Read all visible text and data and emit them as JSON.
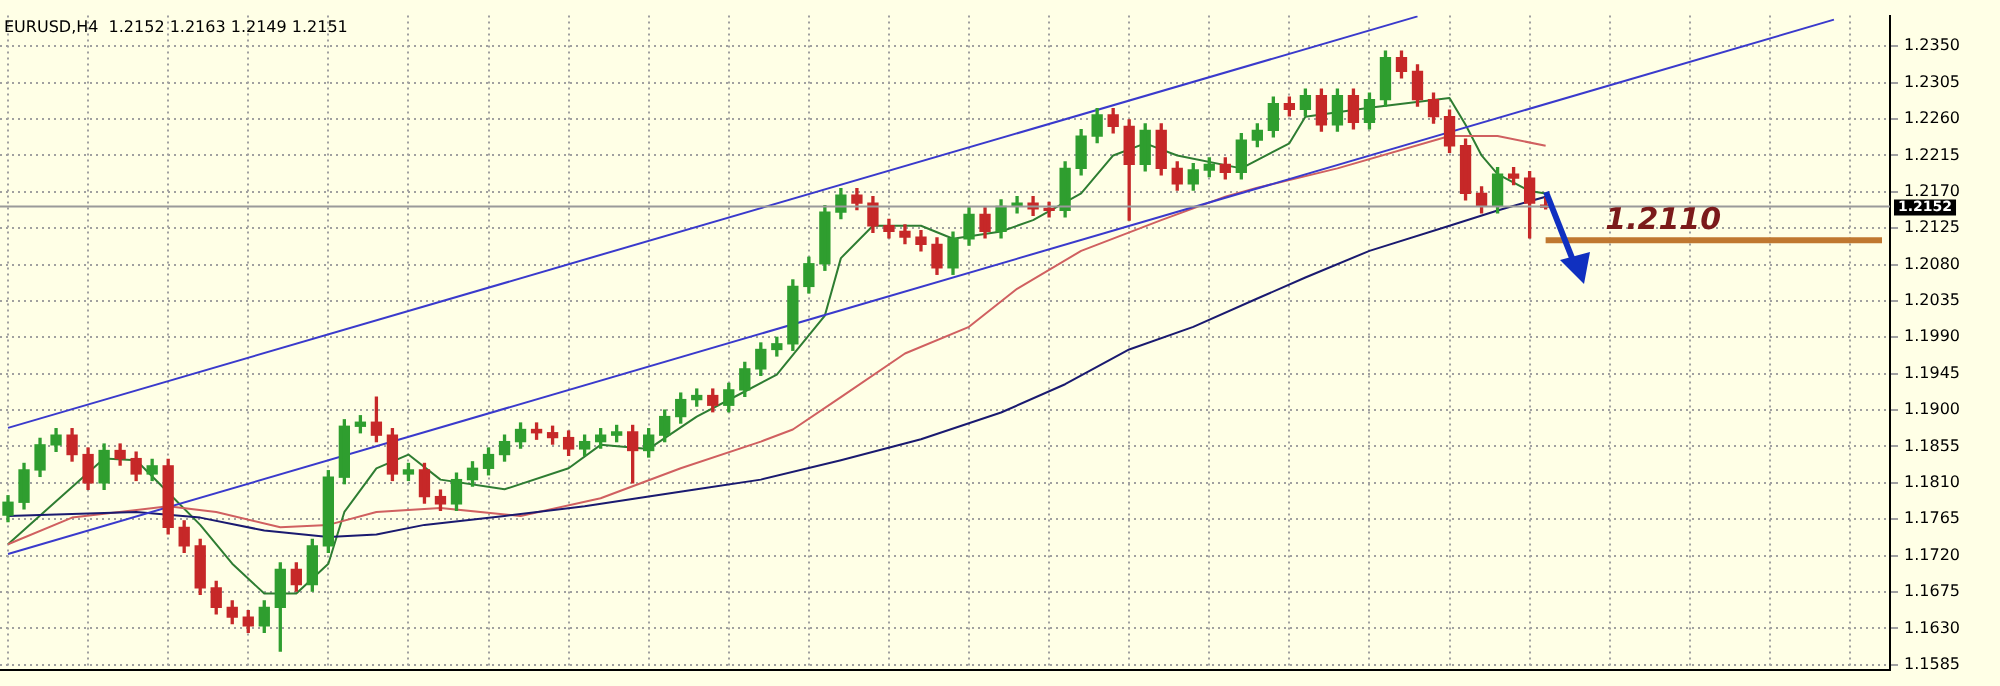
{
  "chart_data": {
    "type": "candlestick",
    "title": "EURUSD,H4  1.2152 1.2163 1.2149 1.2151",
    "categories": [
      null,
      null,
      null,
      null,
      null,
      null,
      null,
      null,
      null,
      null,
      null,
      null,
      null,
      null,
      null,
      null,
      null,
      null,
      null,
      null,
      null,
      null,
      null,
      null,
      null,
      null,
      null,
      null,
      null,
      null,
      null,
      null,
      null,
      null,
      null,
      null,
      null,
      null,
      null,
      null,
      null,
      null,
      null,
      null,
      null,
      null,
      null,
      null,
      null,
      null,
      null,
      null,
      null,
      null,
      null,
      null,
      null,
      null,
      null,
      null,
      null,
      null,
      null,
      null,
      null,
      null,
      null,
      null,
      null,
      null,
      null,
      null,
      null,
      null,
      null,
      null,
      null,
      null,
      null,
      null,
      null,
      null,
      null,
      null,
      null,
      null,
      null,
      null,
      null,
      null,
      null,
      null,
      null,
      null,
      null,
      null,
      null,
      null,
      null,
      null,
      null,
      null,
      null,
      null,
      null,
      null,
      null,
      null,
      null,
      null,
      null,
      null,
      null,
      null,
      null,
      null,
      null,
      null
    ],
    "ohlc": [
      [
        1.177,
        1.1794,
        1.1762,
        1.1786
      ],
      [
        1.1786,
        1.1834,
        1.1778,
        1.1826
      ],
      [
        1.1826,
        1.1865,
        1.1818,
        1.1857
      ],
      [
        1.1857,
        1.1877,
        1.1849,
        1.1869
      ],
      [
        1.1869,
        1.1877,
        1.1837,
        1.1845
      ],
      [
        1.1845,
        1.1853,
        1.1802,
        1.181
      ],
      [
        1.181,
        1.1858,
        1.1802,
        1.185
      ],
      [
        1.185,
        1.1858,
        1.1832,
        1.184
      ],
      [
        1.184,
        1.1848,
        1.1813,
        1.1821
      ],
      [
        1.1821,
        1.1839,
        1.1813,
        1.1831
      ],
      [
        1.1831,
        1.1839,
        1.1747,
        1.1755
      ],
      [
        1.1755,
        1.1763,
        1.1724,
        1.1732
      ],
      [
        1.1732,
        1.174,
        1.1672,
        1.168
      ],
      [
        1.168,
        1.1688,
        1.1648,
        1.1656
      ],
      [
        1.1656,
        1.1664,
        1.1636,
        1.1644
      ],
      [
        1.1644,
        1.1652,
        1.1625,
        1.1633
      ],
      [
        1.1633,
        1.1664,
        1.1625,
        1.1656
      ],
      [
        1.1656,
        1.1711,
        1.1602,
        1.1703
      ],
      [
        1.1703,
        1.1711,
        1.1676,
        1.1684
      ],
      [
        1.1684,
        1.174,
        1.1676,
        1.1732
      ],
      [
        1.1732,
        1.1825,
        1.1724,
        1.1817
      ],
      [
        1.1817,
        1.1888,
        1.1809,
        1.188
      ],
      [
        1.188,
        1.1893,
        1.1872,
        1.1885
      ],
      [
        1.1885,
        1.1916,
        1.1861,
        1.1869
      ],
      [
        1.1869,
        1.1877,
        1.1813,
        1.1821
      ],
      [
        1.1821,
        1.1834,
        1.1813,
        1.1826
      ],
      [
        1.1826,
        1.1834,
        1.1785,
        1.1793
      ],
      [
        1.1793,
        1.1801,
        1.1776,
        1.1784
      ],
      [
        1.1784,
        1.1822,
        1.1776,
        1.1814
      ],
      [
        1.1814,
        1.1836,
        1.1806,
        1.1828
      ],
      [
        1.1828,
        1.1853,
        1.182,
        1.1845
      ],
      [
        1.1845,
        1.1869,
        1.1837,
        1.1861
      ],
      [
        1.1861,
        1.1884,
        1.1853,
        1.1876
      ],
      [
        1.1876,
        1.1884,
        1.1864,
        1.1872
      ],
      [
        1.1872,
        1.188,
        1.1858,
        1.1866
      ],
      [
        1.1866,
        1.1874,
        1.1844,
        1.1852
      ],
      [
        1.1852,
        1.1869,
        1.1844,
        1.1861
      ],
      [
        1.1861,
        1.1877,
        1.1853,
        1.1869
      ],
      [
        1.1869,
        1.1881,
        1.1861,
        1.1873
      ],
      [
        1.1873,
        1.1881,
        1.181,
        1.185
      ],
      [
        1.185,
        1.1877,
        1.1842,
        1.1869
      ],
      [
        1.1869,
        1.19,
        1.1861,
        1.1892
      ],
      [
        1.1892,
        1.1921,
        1.1884,
        1.1913
      ],
      [
        1.1913,
        1.1926,
        1.1905,
        1.1918
      ],
      [
        1.1918,
        1.1926,
        1.1898,
        1.1906
      ],
      [
        1.1906,
        1.1933,
        1.1898,
        1.1925
      ],
      [
        1.1925,
        1.1959,
        1.1917,
        1.1951
      ],
      [
        1.1951,
        1.1983,
        1.1943,
        1.1975
      ],
      [
        1.1975,
        1.199,
        1.1967,
        1.1982
      ],
      [
        1.1982,
        1.2061,
        1.1974,
        1.2053
      ],
      [
        1.2053,
        1.2089,
        1.2045,
        1.2081
      ],
      [
        1.2081,
        1.2153,
        1.2073,
        1.2145
      ],
      [
        1.2145,
        1.2174,
        1.2137,
        1.2166
      ],
      [
        1.2166,
        1.2174,
        1.2148,
        1.2156
      ],
      [
        1.2156,
        1.2164,
        1.212,
        1.2128
      ],
      [
        1.2128,
        1.2136,
        1.2113,
        1.2121
      ],
      [
        1.2121,
        1.2129,
        1.2106,
        1.2114
      ],
      [
        1.2114,
        1.2122,
        1.2097,
        1.2105
      ],
      [
        1.2105,
        1.2113,
        1.2068,
        1.2076
      ],
      [
        1.2076,
        1.212,
        1.2068,
        1.2112
      ],
      [
        1.2112,
        1.215,
        1.2104,
        1.2142
      ],
      [
        1.2142,
        1.215,
        1.2113,
        1.2121
      ],
      [
        1.2121,
        1.216,
        1.2113,
        1.2152
      ],
      [
        1.2152,
        1.2164,
        1.2144,
        1.2156
      ],
      [
        1.2156,
        1.2164,
        1.2141,
        1.2149
      ],
      [
        1.2149,
        1.2157,
        1.2139,
        1.2147
      ],
      [
        1.2147,
        1.2207,
        1.2139,
        1.2199
      ],
      [
        1.2199,
        1.2247,
        1.2191,
        1.2239
      ],
      [
        1.2239,
        1.2273,
        1.2231,
        1.2265
      ],
      [
        1.2265,
        1.2273,
        1.2243,
        1.2251
      ],
      [
        1.2251,
        1.2259,
        1.2135,
        1.2204
      ],
      [
        1.2204,
        1.2254,
        1.2196,
        1.2246
      ],
      [
        1.2246,
        1.2254,
        1.2191,
        1.2199
      ],
      [
        1.2199,
        1.2207,
        1.2172,
        1.218
      ],
      [
        1.218,
        1.2205,
        1.2172,
        1.2197
      ],
      [
        1.2197,
        1.2212,
        1.2189,
        1.2204
      ],
      [
        1.2204,
        1.2212,
        1.2186,
        1.2194
      ],
      [
        1.2194,
        1.2242,
        1.2186,
        1.2234
      ],
      [
        1.2234,
        1.2254,
        1.2226,
        1.2246
      ],
      [
        1.2246,
        1.2287,
        1.2238,
        1.2279
      ],
      [
        1.2279,
        1.2287,
        1.2264,
        1.2272
      ],
      [
        1.2272,
        1.2297,
        1.2264,
        1.2289
      ],
      [
        1.2289,
        1.2297,
        1.2245,
        1.2253
      ],
      [
        1.2253,
        1.2297,
        1.2245,
        1.2289
      ],
      [
        1.2289,
        1.2297,
        1.2248,
        1.2256
      ],
      [
        1.2256,
        1.2292,
        1.2248,
        1.2284
      ],
      [
        1.2284,
        1.2344,
        1.2276,
        1.2336
      ],
      [
        1.2336,
        1.2344,
        1.2311,
        1.2319
      ],
      [
        1.2319,
        1.2327,
        1.2276,
        1.2284
      ],
      [
        1.2284,
        1.2292,
        1.2255,
        1.2263
      ],
      [
        1.2263,
        1.2271,
        1.2219,
        1.2227
      ],
      [
        1.2227,
        1.2235,
        1.216,
        1.2168
      ],
      [
        1.2168,
        1.2176,
        1.2144,
        1.2152
      ],
      [
        1.2152,
        1.22,
        1.2144,
        1.2192
      ],
      [
        1.2192,
        1.22,
        1.2179,
        1.2187
      ],
      [
        1.2187,
        1.2195,
        1.2113,
        1.2156
      ],
      [
        1.2152,
        1.2163,
        1.2149,
        1.2151
      ],
      null,
      null,
      null,
      null,
      null,
      null,
      null,
      null,
      null,
      null,
      null,
      null,
      null,
      null,
      null,
      null,
      null,
      null,
      null,
      null,
      null
    ],
    "colors": [
      "#2f9e2f",
      "#2f9e2f",
      "#2f9e2f",
      "#2f9e2f",
      "#c62828",
      "#c62828",
      "#2f9e2f",
      "#c62828",
      "#c62828",
      "#2f9e2f",
      "#c62828",
      "#c62828",
      "#c62828",
      "#c62828",
      "#c62828",
      "#c62828",
      "#2f9e2f",
      "#2f9e2f",
      "#c62828",
      "#2f9e2f",
      "#2f9e2f",
      "#2f9e2f",
      "#2f9e2f",
      "#c62828",
      "#c62828",
      "#2f9e2f",
      "#c62828",
      "#c62828",
      "#2f9e2f",
      "#2f9e2f",
      "#2f9e2f",
      "#2f9e2f",
      "#2f9e2f",
      "#c62828",
      "#c62828",
      "#c62828",
      "#2f9e2f",
      "#2f9e2f",
      "#2f9e2f",
      "#c62828",
      "#2f9e2f",
      "#2f9e2f",
      "#2f9e2f",
      "#2f9e2f",
      "#c62828",
      "#2f9e2f",
      "#2f9e2f",
      "#2f9e2f",
      "#2f9e2f",
      "#2f9e2f",
      "#2f9e2f",
      "#2f9e2f",
      "#2f9e2f",
      "#c62828",
      "#c62828",
      "#c62828",
      "#c62828",
      "#c62828",
      "#c62828",
      "#2f9e2f",
      "#2f9e2f",
      "#c62828",
      "#2f9e2f",
      "#2f9e2f",
      "#c62828",
      "#c62828",
      "#2f9e2f",
      "#2f9e2f",
      "#2f9e2f",
      "#c62828",
      "#c62828",
      "#2f9e2f",
      "#c62828",
      "#c62828",
      "#2f9e2f",
      "#2f9e2f",
      "#c62828",
      "#2f9e2f",
      "#2f9e2f",
      "#2f9e2f",
      "#c62828",
      "#2f9e2f",
      "#c62828",
      "#2f9e2f",
      "#c62828",
      "#2f9e2f",
      "#2f9e2f",
      "#c62828",
      "#c62828",
      "#c62828",
      "#c62828",
      "#c62828",
      "#c62828",
      "#2f9e2f",
      "#c62828",
      "#c62828",
      "#c62828",
      null,
      null,
      null,
      null,
      null,
      null,
      null,
      null,
      null,
      null,
      null,
      null,
      null,
      null,
      null,
      null,
      null,
      null,
      null,
      null,
      null
    ],
    "series": [
      {
        "type": "line",
        "color": "#3a3acc",
        "values": [
          1.1878,
          null,
          null,
          null,
          null,
          null,
          null,
          null,
          null,
          null,
          null,
          null,
          null,
          null,
          null,
          null,
          null,
          null,
          null,
          null,
          null,
          null,
          null,
          null,
          null,
          null,
          null,
          null,
          null,
          null,
          null,
          null,
          null,
          null,
          null,
          null,
          null,
          null,
          null,
          null,
          null,
          null,
          null,
          null,
          null,
          null,
          null,
          null,
          null,
          null,
          null,
          null,
          null,
          null,
          null,
          null,
          null,
          null,
          null,
          null,
          null,
          null,
          null,
          null,
          null,
          null,
          null,
          null,
          null,
          null,
          null,
          null,
          null,
          null,
          null,
          null,
          null,
          null,
          null,
          null,
          null,
          null,
          null,
          null,
          null,
          null,
          null,
          null,
          1.2387,
          null,
          null,
          null,
          null,
          null,
          null,
          null,
          null,
          null,
          null,
          null,
          null,
          null,
          null,
          null,
          null,
          null,
          null,
          null,
          null,
          null,
          null,
          null,
          null,
          null,
          null,
          null,
          null,
          null
        ]
      },
      {
        "type": "line",
        "color": "#3a3acc",
        "values": [
          1.1722,
          null,
          null,
          null,
          null,
          null,
          null,
          null,
          null,
          null,
          null,
          null,
          null,
          null,
          null,
          null,
          null,
          null,
          null,
          null,
          null,
          null,
          null,
          null,
          null,
          null,
          null,
          null,
          null,
          null,
          null,
          null,
          null,
          null,
          null,
          null,
          null,
          null,
          null,
          null,
          null,
          null,
          null,
          null,
          null,
          null,
          null,
          null,
          null,
          null,
          null,
          null,
          null,
          null,
          null,
          null,
          null,
          null,
          null,
          null,
          null,
          null,
          null,
          null,
          null,
          null,
          null,
          null,
          null,
          null,
          null,
          null,
          null,
          null,
          null,
          null,
          null,
          null,
          null,
          null,
          null,
          null,
          null,
          null,
          null,
          null,
          null,
          null,
          null,
          null,
          null,
          null,
          null,
          null,
          null,
          null,
          null,
          null,
          null,
          null,
          null,
          null,
          null,
          null,
          null,
          null,
          null,
          null,
          null,
          null,
          null,
          null,
          null,
          null,
          1.2383,
          null,
          null,
          null
        ]
      },
      {
        "type": "line",
        "color": "#1a1a70",
        "values": [
          1.1769,
          null,
          null,
          null,
          null,
          null,
          null,
          null,
          1.1774,
          null,
          null,
          null,
          1.1767,
          null,
          null,
          null,
          1.1751,
          null,
          null,
          null,
          1.1743,
          null,
          null,
          1.1746,
          null,
          null,
          1.1758,
          null,
          null,
          null,
          null,
          1.1769,
          null,
          null,
          null,
          null,
          1.1781,
          null,
          null,
          null,
          1.1793,
          null,
          null,
          1.1802,
          null,
          null,
          null,
          1.1814,
          null,
          null,
          null,
          null,
          1.1838,
          null,
          null,
          null,
          null,
          1.1864,
          null,
          null,
          null,
          null,
          1.1897,
          null,
          null,
          null,
          1.1932,
          null,
          null,
          null,
          1.1975,
          null,
          null,
          null,
          1.2003,
          null,
          null,
          null,
          1.2038,
          null,
          null,
          1.2064,
          null,
          null,
          null,
          1.2097,
          null,
          null,
          null,
          null,
          1.2128,
          null,
          null,
          1.2147,
          null,
          null,
          1.2164,
          null,
          null,
          null,
          null,
          null,
          null,
          null,
          null,
          null,
          null,
          null,
          null,
          null,
          null,
          null,
          null,
          null,
          null,
          null,
          null,
          null
        ]
      },
      {
        "type": "line",
        "color": "#d06060",
        "values": [
          1.1734,
          null,
          null,
          null,
          1.1767,
          null,
          null,
          null,
          null,
          null,
          1.1781,
          null,
          null,
          1.1774,
          null,
          null,
          null,
          1.1755,
          null,
          null,
          1.1758,
          null,
          null,
          1.1774,
          null,
          null,
          null,
          1.1779,
          null,
          null,
          null,
          null,
          1.1769,
          null,
          null,
          null,
          null,
          1.1791,
          null,
          null,
          null,
          null,
          1.1828,
          null,
          null,
          null,
          null,
          1.1861,
          null,
          1.1876,
          null,
          null,
          1.1916,
          null,
          null,
          null,
          1.197,
          null,
          null,
          null,
          1.2003,
          null,
          null,
          1.205,
          null,
          null,
          null,
          1.2097,
          null,
          null,
          null,
          null,
          1.2135,
          null,
          null,
          null,
          1.2164,
          null,
          1.2175,
          null,
          null,
          null,
          null,
          1.2199,
          null,
          null,
          null,
          null,
          null,
          null,
          1.2239,
          null,
          null,
          1.2239,
          null,
          null,
          1.2227,
          null,
          null,
          null,
          null,
          null,
          null,
          null,
          null,
          null,
          null,
          null,
          null,
          null,
          null,
          null,
          null,
          null,
          null,
          null,
          null,
          null
        ]
      },
      {
        "type": "line",
        "color": "#2e7d32",
        "values": [
          1.1734,
          null,
          null,
          null,
          1.1805,
          null,
          1.184,
          null,
          1.1838,
          null,
          1.1798,
          null,
          1.1758,
          null,
          1.171,
          null,
          1.1673,
          null,
          1.1673,
          null,
          1.171,
          1.1774,
          null,
          1.1828,
          null,
          1.1845,
          null,
          1.1814,
          null,
          null,
          null,
          1.1802,
          null,
          null,
          null,
          1.1828,
          null,
          1.1857,
          null,
          null,
          1.1852,
          null,
          null,
          1.1892,
          null,
          null,
          1.1923,
          null,
          1.1944,
          null,
          null,
          1.2017,
          1.2088,
          null,
          1.2128,
          null,
          null,
          1.2128,
          null,
          1.2112,
          null,
          null,
          1.2121,
          null,
          1.2135,
          null,
          null,
          1.2168,
          null,
          1.2215,
          null,
          1.223,
          null,
          1.2215,
          null,
          null,
          null,
          1.2199,
          null,
          null,
          1.223,
          1.2263,
          null,
          null,
          null,
          1.2274,
          null,
          null,
          null,
          null,
          1.2286,
          1.2253,
          1.2215,
          1.2192,
          null,
          1.2171,
          1.2168,
          null,
          null,
          null,
          null,
          null,
          null,
          null,
          null,
          null,
          null,
          null,
          null,
          null,
          null,
          null,
          null,
          null,
          null,
          null,
          null,
          null
        ]
      },
      {
        "type": "line",
        "color": "#c07830",
        "values": [
          null,
          null,
          null,
          null,
          null,
          null,
          null,
          null,
          null,
          null,
          null,
          null,
          null,
          null,
          null,
          null,
          null,
          null,
          null,
          null,
          null,
          null,
          null,
          null,
          null,
          null,
          null,
          null,
          null,
          null,
          null,
          null,
          null,
          null,
          null,
          null,
          null,
          null,
          null,
          null,
          null,
          null,
          null,
          null,
          null,
          null,
          null,
          null,
          null,
          null,
          null,
          null,
          null,
          null,
          null,
          null,
          null,
          null,
          null,
          null,
          null,
          null,
          null,
          null,
          null,
          null,
          null,
          null,
          null,
          null,
          null,
          null,
          null,
          null,
          null,
          null,
          null,
          null,
          null,
          null,
          null,
          null,
          null,
          null,
          null,
          null,
          null,
          null,
          null,
          null,
          null,
          null,
          null,
          null,
          null,
          null,
          1.211,
          null,
          null,
          null,
          null,
          null,
          null,
          null,
          null,
          null,
          null,
          null,
          null,
          null,
          null,
          null,
          null,
          null,
          null,
          null,
          null,
          1.211
        ]
      }
    ],
    "ref_lines": [
      {
        "axis": "y",
        "value": 1.2152,
        "label": "1.2152",
        "color": "#9a9a9a"
      }
    ],
    "annotations": [
      {
        "text": "1.2110",
        "y": 1.211
      }
    ],
    "ylim": [
      1.1578,
      1.2388
    ],
    "yticks": [
      {
        "value": 1.1585,
        "label": "1.1585"
      },
      {
        "value": 1.163,
        "label": "1.1630"
      },
      {
        "value": 1.1675,
        "label": "1.1675"
      },
      {
        "value": 1.172,
        "label": "1.1720"
      },
      {
        "value": 1.1765,
        "label": "1.1765"
      },
      {
        "value": 1.181,
        "label": "1.1810"
      },
      {
        "value": 1.1855,
        "label": "1.1855"
      },
      {
        "value": 1.19,
        "label": "1.1900"
      },
      {
        "value": 1.1945,
        "label": "1.1945"
      },
      {
        "value": 1.199,
        "label": "1.1990"
      },
      {
        "value": 1.2035,
        "label": "1.2035"
      },
      {
        "value": 1.208,
        "label": "1.2080"
      },
      {
        "value": 1.2125,
        "label": "1.2125"
      },
      {
        "value": 1.217,
        "label": "1.2170"
      },
      {
        "value": 1.2215,
        "label": "1.2215"
      },
      {
        "value": 1.226,
        "label": "1.2260"
      },
      {
        "value": 1.2305,
        "label": "1.2305"
      },
      {
        "value": 1.235,
        "label": "1.2350"
      }
    ],
    "tick_labels": "y",
    "grid": true
  }
}
